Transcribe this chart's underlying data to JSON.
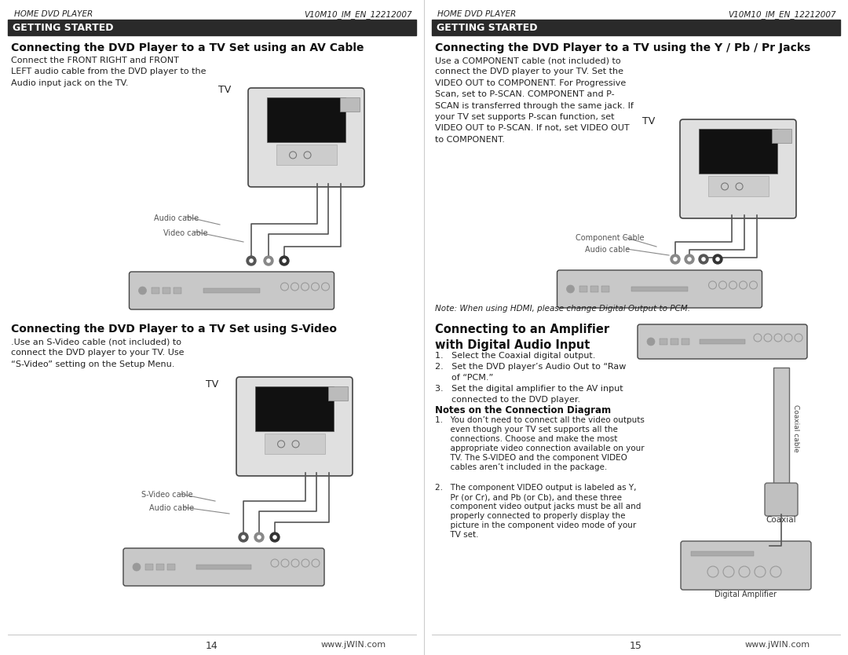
{
  "bg_color": "#ffffff",
  "header_bg": "#2a2a2a",
  "header_text_color": "#ffffff",
  "header_text": "GETTING STARTED",
  "top_label_left": "HOME DVD PLAYER",
  "top_label_right": "V10M10_IM_EN_12212007",
  "left_panel": {
    "section1_title": "Connecting the DVD Player to a TV Set using an AV Cable",
    "section1_body": "Connect the FRONT RIGHT and FRONT\nLEFT audio cable from the DVD player to the\nAudio input jack on the TV.",
    "section1_tv_label": "TV",
    "section1_cable1_label": "Audio cable",
    "section1_cable2_label": "Video cable",
    "section2_title": "Connecting the DVD Player to a TV Set using S-Video",
    "section2_body": ".Use an S-Video cable (not included) to\nconnect the DVD player to your TV. Use\n“S-Video” setting on the Setup Menu.",
    "section2_tv_label": "TV",
    "section2_cable1_label": "S-Video cable",
    "section2_cable2_label": "Audio cable",
    "page_number": "14",
    "website": "www.jWIN.com"
  },
  "right_panel": {
    "section1_title": "Connecting the DVD Player to a TV using the Y / Pb / Pr Jacks",
    "section1_body": "Use a COMPONENT cable (not included) to\nconnect the DVD player to your TV. Set the\nVIDEO OUT to COMPONENT. For Progressive\nScan, set to P-SCAN. COMPONENT and P-\nSCAN is transferred through the same jack. If\nyour TV set supports P-scan function, set\nVIDEO OUT to P-SCAN. If not, set VIDEO OUT\nto COMPONENT.",
    "section1_tv_label": "TV",
    "section1_cable1_label": "Component Cable",
    "section1_cable2_label": "Audio cable",
    "section1_note": "Note: When using HDMI, please change Digital Output to PCM.",
    "section2_title": "Connecting to an Amplifier\nwith Digital Audio Input",
    "section2_body1": "1.   Select the Coaxial digital output.",
    "section2_body2": "2.   Set the DVD player’s Audio Out to “Raw",
    "section2_body2b": "      of “PCM.”",
    "section2_body3": "3.   Set the digital amplifier to the AV input",
    "section2_body3b": "      connected to the DVD player.",
    "section2_notes_title": "Notes on the Connection Diagram",
    "section2_notes1a": "1.   You don’t need to connect all the video outputs",
    "section2_notes1b": "      even though your TV set supports all the",
    "section2_notes1c": "      connections. Choose and make the most",
    "section2_notes1d": "      appropriate video connection available on your",
    "section2_notes1e": "      TV. The S-VIDEO and the component VIDEO",
    "section2_notes1f": "      cables aren’t included in the package.",
    "section2_notes2a": "2.   The component VIDEO output is labeled as Y,",
    "section2_notes2b": "      Pr (or Cr), and Pb (or Cb), and these three",
    "section2_notes2c": "      component video output jacks must be all and",
    "section2_notes2d": "      properly connected to properly display the",
    "section2_notes2e": "      picture in the component video mode of your",
    "section2_notes2f": "      TV set.",
    "section2_cable_label": "Coaxial cable",
    "section2_amp_label": "Digital Amplifier",
    "section2_coax_label": "Coaxial",
    "page_number": "15",
    "website": "www.jWIN.com"
  }
}
